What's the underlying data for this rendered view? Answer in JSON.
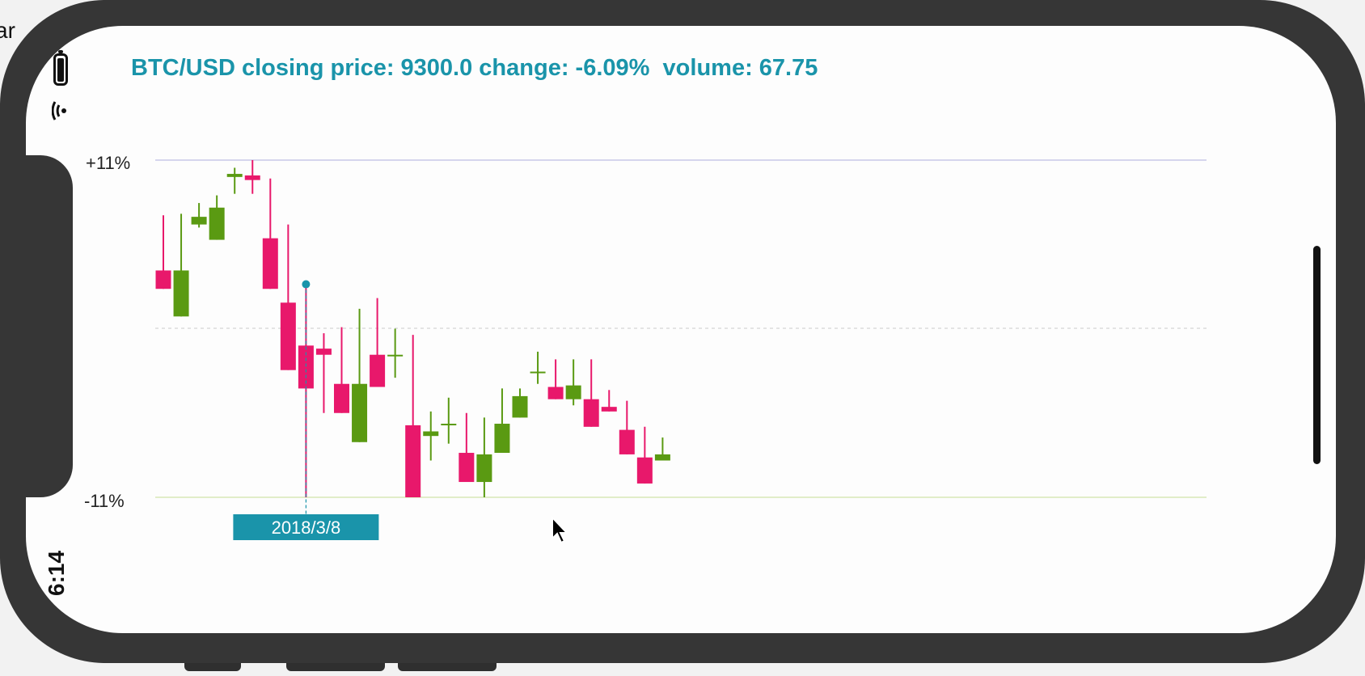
{
  "page_corner_text": "ar",
  "status_bar": {
    "time": "6:14",
    "battery_icon": "battery-icon",
    "wifi_icon": "wifi-icon"
  },
  "header": {
    "title": "BTC/USD closing price: 9300.0 change: -6.09%  volume: 67.75"
  },
  "colors": {
    "accent": "#1a94aa",
    "up": "#5a9a12",
    "down": "#e8186b",
    "grid": "#c8c8e8"
  },
  "chart_data": {
    "type": "candlestick",
    "y_axis": {
      "top_label": "+11%",
      "bottom_label": "-11%",
      "range": [
        -11,
        11
      ]
    },
    "crosshair_label": "2018/3/8",
    "crosshair_index": 8,
    "candles": [
      {
        "open": 3.8,
        "close": 2.6,
        "high": 7.4,
        "low": 2.6
      },
      {
        "open": 0.8,
        "close": 3.8,
        "high": 7.5,
        "low": 0.8
      },
      {
        "open": 6.8,
        "close": 7.3,
        "high": 8.2,
        "low": 6.6
      },
      {
        "open": 5.8,
        "close": 7.9,
        "high": 8.7,
        "low": 5.8
      },
      {
        "open": 9.9,
        "close": 10.1,
        "high": 10.5,
        "low": 8.8
      },
      {
        "open": 10.0,
        "close": 9.7,
        "high": 11.0,
        "low": 8.8
      },
      {
        "open": 5.9,
        "close": 2.6,
        "high": 9.8,
        "low": 2.6
      },
      {
        "open": 1.7,
        "close": -2.7,
        "high": 6.8,
        "low": -2.7
      },
      {
        "open": -1.1,
        "close": -3.9,
        "high": 2.9,
        "low": -11.0
      },
      {
        "open": -1.3,
        "close": -1.7,
        "high": -0.3,
        "low": -5.5
      },
      {
        "open": -3.6,
        "close": -5.5,
        "high": 0.1,
        "low": -5.5
      },
      {
        "open": -7.4,
        "close": -3.6,
        "high": 1.3,
        "low": -7.4
      },
      {
        "open": -1.7,
        "close": -3.8,
        "high": 2.0,
        "low": -3.8
      },
      {
        "open": -1.7,
        "close": -1.7,
        "high": -0.0,
        "low": -3.2
      },
      {
        "open": -6.3,
        "close": -11.0,
        "high": -0.4,
        "low": -11.0
      },
      {
        "open": -7.0,
        "close": -6.7,
        "high": -5.4,
        "low": -8.6
      },
      {
        "open": -6.2,
        "close": -6.2,
        "high": -4.5,
        "low": -7.5
      },
      {
        "open": -8.1,
        "close": -10.0,
        "high": -5.5,
        "low": -10.0
      },
      {
        "open": -10.0,
        "close": -8.2,
        "high": -5.8,
        "low": -11.0
      },
      {
        "open": -8.1,
        "close": -6.2,
        "high": -3.9,
        "low": -8.1
      },
      {
        "open": -5.8,
        "close": -4.4,
        "high": -3.9,
        "low": -5.8
      },
      {
        "open": -2.8,
        "close": -2.8,
        "high": -1.5,
        "low": -3.6
      },
      {
        "open": -3.8,
        "close": -4.6,
        "high": -2.0,
        "low": -4.6
      },
      {
        "open": -4.6,
        "close": -3.7,
        "high": -2.0,
        "low": -5.0
      },
      {
        "open": -4.6,
        "close": -6.4,
        "high": -2.0,
        "low": -6.4
      },
      {
        "open": -5.1,
        "close": -5.4,
        "high": -4.0,
        "low": -5.4
      },
      {
        "open": -6.6,
        "close": -8.2,
        "high": -4.7,
        "low": -8.2
      },
      {
        "open": -8.4,
        "close": -10.1,
        "high": -6.4,
        "low": -10.1
      },
      {
        "open": -8.6,
        "close": -8.2,
        "high": -7.1,
        "low": -8.6
      }
    ]
  },
  "cursor_icon": "arrow-cursor-icon"
}
